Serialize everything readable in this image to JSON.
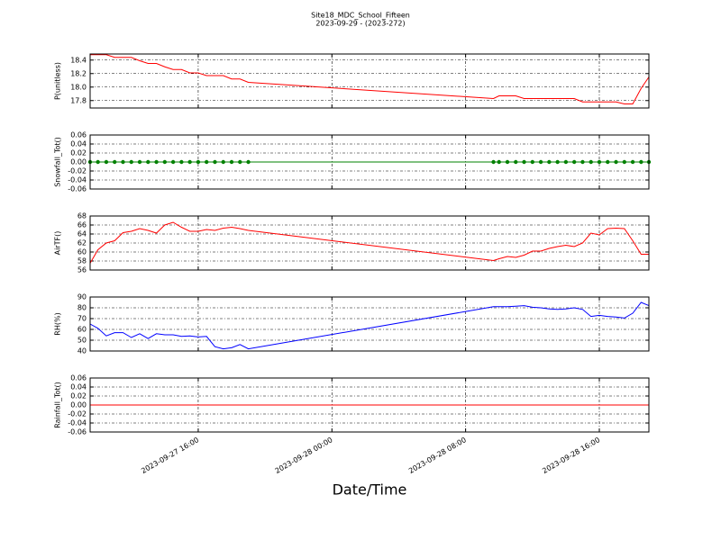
{
  "chart_data": [
    {
      "type": "line",
      "title": "Site18_MDC_School_Fifteen",
      "subtitle": "2023-09-29 - (2023-272)",
      "ylabel": "P(unitless)",
      "color": "#ff0000",
      "marker": false,
      "grid": true,
      "x": [
        "2023-09-27 09:32",
        "2023-09-27 10:00",
        "2023-09-27 10:30",
        "2023-09-27 11:00",
        "2023-09-27 11:30",
        "2023-09-27 12:00",
        "2023-09-27 12:30",
        "2023-09-27 13:00",
        "2023-09-27 13:30",
        "2023-09-27 14:00",
        "2023-09-27 14:30",
        "2023-09-27 15:00",
        "2023-09-27 15:30",
        "2023-09-27 16:00",
        "2023-09-27 16:30",
        "2023-09-27 17:00",
        "2023-09-27 17:30",
        "2023-09-27 18:00",
        "2023-09-27 18:30",
        "2023-09-27 19:00",
        "2023-09-28 09:40",
        "2023-09-28 10:00",
        "2023-09-28 10:30",
        "2023-09-28 11:00",
        "2023-09-28 11:30",
        "2023-09-28 12:00",
        "2023-09-28 12:30",
        "2023-09-28 13:00",
        "2023-09-28 13:30",
        "2023-09-28 14:00",
        "2023-09-28 14:30",
        "2023-09-28 15:00",
        "2023-09-28 15:30",
        "2023-09-28 16:00",
        "2023-09-28 16:30",
        "2023-09-28 17:00",
        "2023-09-28 17:30",
        "2023-09-28 18:00",
        "2023-09-28 18:30",
        "2023-09-28 18:58"
      ],
      "values": [
        18.48,
        18.48,
        18.48,
        18.44,
        18.44,
        18.44,
        18.39,
        18.35,
        18.35,
        18.3,
        18.26,
        18.26,
        18.21,
        18.21,
        18.17,
        18.17,
        18.17,
        18.12,
        18.12,
        18.07,
        17.83,
        17.87,
        17.87,
        17.87,
        17.83,
        17.83,
        17.83,
        17.83,
        17.83,
        17.83,
        17.83,
        17.78,
        17.78,
        17.78,
        17.78,
        17.78,
        17.75,
        17.75,
        17.98,
        18.15
      ],
      "ylim": [
        17.69,
        18.49
      ],
      "yticks": [
        17.8,
        {
          "value": 18.0,
          "label": "18.0"
        },
        18.2,
        18.4
      ]
    },
    {
      "type": "line",
      "ylabel": "Snowfall_Tot()",
      "color": "#008000",
      "marker": true,
      "grid": true,
      "x": [
        "2023-09-27 09:32",
        "2023-09-27 10:00",
        "2023-09-27 10:30",
        "2023-09-27 11:00",
        "2023-09-27 11:30",
        "2023-09-27 12:00",
        "2023-09-27 12:30",
        "2023-09-27 13:00",
        "2023-09-27 13:30",
        "2023-09-27 14:00",
        "2023-09-27 14:30",
        "2023-09-27 15:00",
        "2023-09-27 15:30",
        "2023-09-27 16:00",
        "2023-09-27 16:30",
        "2023-09-27 17:00",
        "2023-09-27 17:30",
        "2023-09-27 18:00",
        "2023-09-27 18:30",
        "2023-09-27 19:00",
        "2023-09-28 09:40",
        "2023-09-28 10:00",
        "2023-09-28 10:30",
        "2023-09-28 11:00",
        "2023-09-28 11:30",
        "2023-09-28 12:00",
        "2023-09-28 12:30",
        "2023-09-28 13:00",
        "2023-09-28 13:30",
        "2023-09-28 14:00",
        "2023-09-28 14:30",
        "2023-09-28 15:00",
        "2023-09-28 15:30",
        "2023-09-28 16:00",
        "2023-09-28 16:30",
        "2023-09-28 17:00",
        "2023-09-28 17:30",
        "2023-09-28 18:00",
        "2023-09-28 18:30",
        "2023-09-28 18:58"
      ],
      "values": [
        0,
        0,
        0,
        0,
        0,
        0,
        0,
        0,
        0,
        0,
        0,
        0,
        0,
        0,
        0,
        0,
        0,
        0,
        0,
        0,
        0,
        0,
        0,
        0,
        0,
        0,
        0,
        0,
        0,
        0,
        0,
        0,
        0,
        0,
        0,
        0,
        0,
        0,
        0,
        0
      ],
      "ylim": [
        -0.06,
        0.06
      ],
      "yticks": [
        -0.06,
        -0.04,
        -0.02,
        {
          "value": 0,
          "label": "0.00"
        },
        0.02,
        0.04,
        0.06
      ]
    },
    {
      "type": "line",
      "ylabel": "AirTF()",
      "color": "#ff0000",
      "marker": false,
      "grid": true,
      "x": [
        "2023-09-27 09:32",
        "2023-09-27 10:00",
        "2023-09-27 10:30",
        "2023-09-27 11:00",
        "2023-09-27 11:30",
        "2023-09-27 12:00",
        "2023-09-27 12:30",
        "2023-09-27 13:00",
        "2023-09-27 13:30",
        "2023-09-27 14:00",
        "2023-09-27 14:30",
        "2023-09-27 15:00",
        "2023-09-27 15:30",
        "2023-09-27 16:00",
        "2023-09-27 16:30",
        "2023-09-27 17:00",
        "2023-09-27 17:30",
        "2023-09-27 18:00",
        "2023-09-27 18:30",
        "2023-09-27 19:00",
        "2023-09-28 09:40",
        "2023-09-28 10:00",
        "2023-09-28 10:30",
        "2023-09-28 11:00",
        "2023-09-28 11:30",
        "2023-09-28 12:00",
        "2023-09-28 12:30",
        "2023-09-28 13:00",
        "2023-09-28 13:30",
        "2023-09-28 14:00",
        "2023-09-28 14:30",
        "2023-09-28 15:00",
        "2023-09-28 15:30",
        "2023-09-28 16:00",
        "2023-09-28 16:30",
        "2023-09-28 17:00",
        "2023-09-28 17:30",
        "2023-09-28 18:00",
        "2023-09-28 18:30",
        "2023-09-28 18:58"
      ],
      "values": [
        57.5,
        60.5,
        62,
        62.5,
        64.3,
        64.6,
        65.2,
        64.8,
        64.2,
        66,
        66.6,
        65.5,
        64.6,
        64.6,
        65,
        64.8,
        65.3,
        65.5,
        65.2,
        64.8,
        58.1,
        58.5,
        59,
        58.8,
        59.3,
        60.2,
        60.2,
        60.8,
        61.2,
        61.5,
        61.2,
        62,
        64.2,
        63.8,
        65.2,
        65.3,
        65.2,
        62.5,
        59.5,
        59.5
      ],
      "ylim": [
        56,
        68
      ],
      "yticks": [
        56,
        58,
        60,
        62,
        64,
        66,
        68
      ]
    },
    {
      "type": "line",
      "ylabel": "RH(%)",
      "color": "#0000ff",
      "marker": false,
      "grid": true,
      "x": [
        "2023-09-27 09:32",
        "2023-09-27 10:00",
        "2023-09-27 10:30",
        "2023-09-27 11:00",
        "2023-09-27 11:30",
        "2023-09-27 12:00",
        "2023-09-27 12:30",
        "2023-09-27 13:00",
        "2023-09-27 13:30",
        "2023-09-27 14:00",
        "2023-09-27 14:30",
        "2023-09-27 15:00",
        "2023-09-27 15:30",
        "2023-09-27 16:00",
        "2023-09-27 16:30",
        "2023-09-27 17:00",
        "2023-09-27 17:30",
        "2023-09-27 18:00",
        "2023-09-27 18:30",
        "2023-09-27 19:00",
        "2023-09-28 09:40",
        "2023-09-28 10:00",
        "2023-09-28 10:30",
        "2023-09-28 11:00",
        "2023-09-28 11:30",
        "2023-09-28 12:00",
        "2023-09-28 12:30",
        "2023-09-28 13:00",
        "2023-09-28 13:30",
        "2023-09-28 14:00",
        "2023-09-28 14:30",
        "2023-09-28 15:00",
        "2023-09-28 15:30",
        "2023-09-28 16:00",
        "2023-09-28 16:30",
        "2023-09-28 17:00",
        "2023-09-28 17:30",
        "2023-09-28 18:00",
        "2023-09-28 18:30",
        "2023-09-28 18:58"
      ],
      "values": [
        65,
        61,
        54,
        57,
        57,
        52.5,
        56,
        51.5,
        56,
        55,
        55,
        53.5,
        54,
        53,
        53.5,
        44,
        42,
        43,
        46,
        42,
        81,
        81,
        81,
        81.5,
        82,
        80.5,
        80,
        79,
        78.5,
        79,
        80,
        78.5,
        72,
        73,
        72,
        71.5,
        70.5,
        75,
        85,
        82
      ],
      "ylim": [
        40,
        90
      ],
      "yticks": [
        40,
        50,
        60,
        70,
        80,
        90
      ]
    },
    {
      "type": "line",
      "ylabel": "Rainfall_Tot()",
      "xlabel": "Date/Time",
      "color": "#ff0000",
      "marker": false,
      "grid": true,
      "x": [
        "2023-09-27 09:32",
        "2023-09-27 10:00",
        "2023-09-27 10:30",
        "2023-09-27 11:00",
        "2023-09-27 11:30",
        "2023-09-27 12:00",
        "2023-09-27 12:30",
        "2023-09-27 13:00",
        "2023-09-27 13:30",
        "2023-09-27 14:00",
        "2023-09-27 14:30",
        "2023-09-27 15:00",
        "2023-09-27 15:30",
        "2023-09-27 16:00",
        "2023-09-27 16:30",
        "2023-09-27 17:00",
        "2023-09-27 17:30",
        "2023-09-27 18:00",
        "2023-09-27 18:30",
        "2023-09-27 19:00",
        "2023-09-28 09:40",
        "2023-09-28 10:00",
        "2023-09-28 10:30",
        "2023-09-28 11:00",
        "2023-09-28 11:30",
        "2023-09-28 12:00",
        "2023-09-28 12:30",
        "2023-09-28 13:00",
        "2023-09-28 13:30",
        "2023-09-28 14:00",
        "2023-09-28 14:30",
        "2023-09-28 15:00",
        "2023-09-28 15:30",
        "2023-09-28 16:00",
        "2023-09-28 16:30",
        "2023-09-28 17:00",
        "2023-09-28 17:30",
        "2023-09-28 18:00",
        "2023-09-28 18:30",
        "2023-09-28 18:58"
      ],
      "values": [
        0,
        0,
        0,
        0,
        0,
        0,
        0,
        0,
        0,
        0,
        0,
        0,
        0,
        0,
        0,
        0,
        0,
        0,
        0,
        0,
        0,
        0,
        0,
        0,
        0,
        0,
        0,
        0,
        0,
        0,
        0,
        0,
        0,
        0,
        0,
        0,
        0,
        0,
        0,
        0
      ],
      "ylim": [
        -0.06,
        0.06
      ],
      "yticks": [
        -0.06,
        -0.04,
        -0.02,
        {
          "value": 0,
          "label": "0.00"
        },
        0.02,
        0.04,
        0.06
      ],
      "xlim": [
        "2023-09-27 09:32",
        "2023-09-28 18:58"
      ],
      "xticks": [
        "2023-09-27 16:00",
        "2023-09-28 00:00",
        "2023-09-28 08:00",
        "2023-09-28 16:00"
      ]
    }
  ]
}
